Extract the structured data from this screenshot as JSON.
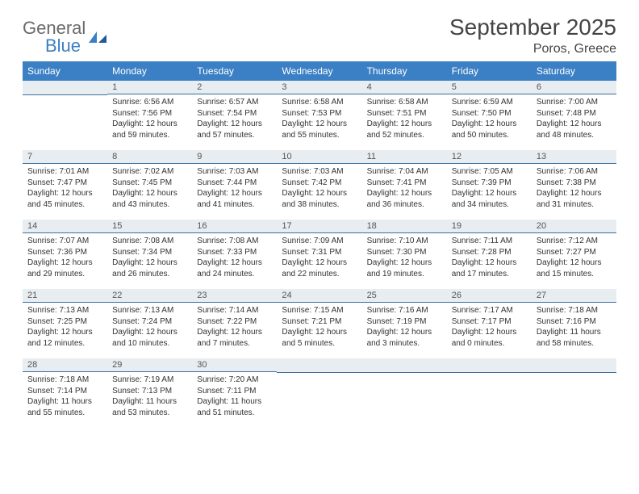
{
  "brand": {
    "word1": "General",
    "word2": "Blue"
  },
  "title": "September 2025",
  "location": "Poros, Greece",
  "days_of_week": [
    "Sunday",
    "Monday",
    "Tuesday",
    "Wednesday",
    "Thursday",
    "Friday",
    "Saturday"
  ],
  "colors": {
    "header_bg": "#3b7fc4",
    "header_text": "#ffffff",
    "daynum_bg": "#e8edf1",
    "daynum_border": "#3b6fa0",
    "text": "#333333",
    "logo_gray": "#6a6a6a",
    "logo_blue": "#3b7fc4"
  },
  "weeks": [
    [
      null,
      {
        "n": "1",
        "sunrise": "6:56 AM",
        "sunset": "7:56 PM",
        "daylight": "12 hours and 59 minutes."
      },
      {
        "n": "2",
        "sunrise": "6:57 AM",
        "sunset": "7:54 PM",
        "daylight": "12 hours and 57 minutes."
      },
      {
        "n": "3",
        "sunrise": "6:58 AM",
        "sunset": "7:53 PM",
        "daylight": "12 hours and 55 minutes."
      },
      {
        "n": "4",
        "sunrise": "6:58 AM",
        "sunset": "7:51 PM",
        "daylight": "12 hours and 52 minutes."
      },
      {
        "n": "5",
        "sunrise": "6:59 AM",
        "sunset": "7:50 PM",
        "daylight": "12 hours and 50 minutes."
      },
      {
        "n": "6",
        "sunrise": "7:00 AM",
        "sunset": "7:48 PM",
        "daylight": "12 hours and 48 minutes."
      }
    ],
    [
      {
        "n": "7",
        "sunrise": "7:01 AM",
        "sunset": "7:47 PM",
        "daylight": "12 hours and 45 minutes."
      },
      {
        "n": "8",
        "sunrise": "7:02 AM",
        "sunset": "7:45 PM",
        "daylight": "12 hours and 43 minutes."
      },
      {
        "n": "9",
        "sunrise": "7:03 AM",
        "sunset": "7:44 PM",
        "daylight": "12 hours and 41 minutes."
      },
      {
        "n": "10",
        "sunrise": "7:03 AM",
        "sunset": "7:42 PM",
        "daylight": "12 hours and 38 minutes."
      },
      {
        "n": "11",
        "sunrise": "7:04 AM",
        "sunset": "7:41 PM",
        "daylight": "12 hours and 36 minutes."
      },
      {
        "n": "12",
        "sunrise": "7:05 AM",
        "sunset": "7:39 PM",
        "daylight": "12 hours and 34 minutes."
      },
      {
        "n": "13",
        "sunrise": "7:06 AM",
        "sunset": "7:38 PM",
        "daylight": "12 hours and 31 minutes."
      }
    ],
    [
      {
        "n": "14",
        "sunrise": "7:07 AM",
        "sunset": "7:36 PM",
        "daylight": "12 hours and 29 minutes."
      },
      {
        "n": "15",
        "sunrise": "7:08 AM",
        "sunset": "7:34 PM",
        "daylight": "12 hours and 26 minutes."
      },
      {
        "n": "16",
        "sunrise": "7:08 AM",
        "sunset": "7:33 PM",
        "daylight": "12 hours and 24 minutes."
      },
      {
        "n": "17",
        "sunrise": "7:09 AM",
        "sunset": "7:31 PM",
        "daylight": "12 hours and 22 minutes."
      },
      {
        "n": "18",
        "sunrise": "7:10 AM",
        "sunset": "7:30 PM",
        "daylight": "12 hours and 19 minutes."
      },
      {
        "n": "19",
        "sunrise": "7:11 AM",
        "sunset": "7:28 PM",
        "daylight": "12 hours and 17 minutes."
      },
      {
        "n": "20",
        "sunrise": "7:12 AM",
        "sunset": "7:27 PM",
        "daylight": "12 hours and 15 minutes."
      }
    ],
    [
      {
        "n": "21",
        "sunrise": "7:13 AM",
        "sunset": "7:25 PM",
        "daylight": "12 hours and 12 minutes."
      },
      {
        "n": "22",
        "sunrise": "7:13 AM",
        "sunset": "7:24 PM",
        "daylight": "12 hours and 10 minutes."
      },
      {
        "n": "23",
        "sunrise": "7:14 AM",
        "sunset": "7:22 PM",
        "daylight": "12 hours and 7 minutes."
      },
      {
        "n": "24",
        "sunrise": "7:15 AM",
        "sunset": "7:21 PM",
        "daylight": "12 hours and 5 minutes."
      },
      {
        "n": "25",
        "sunrise": "7:16 AM",
        "sunset": "7:19 PM",
        "daylight": "12 hours and 3 minutes."
      },
      {
        "n": "26",
        "sunrise": "7:17 AM",
        "sunset": "7:17 PM",
        "daylight": "12 hours and 0 minutes."
      },
      {
        "n": "27",
        "sunrise": "7:18 AM",
        "sunset": "7:16 PM",
        "daylight": "11 hours and 58 minutes."
      }
    ],
    [
      {
        "n": "28",
        "sunrise": "7:18 AM",
        "sunset": "7:14 PM",
        "daylight": "11 hours and 55 minutes."
      },
      {
        "n": "29",
        "sunrise": "7:19 AM",
        "sunset": "7:13 PM",
        "daylight": "11 hours and 53 minutes."
      },
      {
        "n": "30",
        "sunrise": "7:20 AM",
        "sunset": "7:11 PM",
        "daylight": "11 hours and 51 minutes."
      },
      null,
      null,
      null,
      null
    ]
  ],
  "labels": {
    "sunrise": "Sunrise:",
    "sunset": "Sunset:",
    "daylight": "Daylight:"
  }
}
